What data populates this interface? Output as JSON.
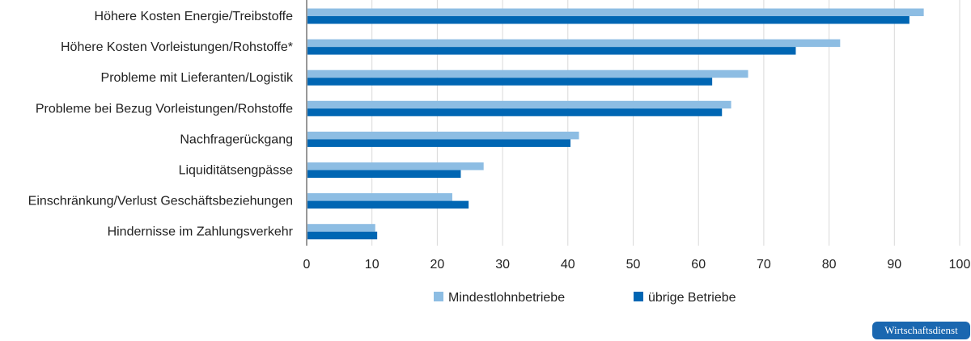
{
  "chart_data": {
    "type": "bar",
    "orientation": "horizontal",
    "categories": [
      "Höhere Kosten Energie/Treibstoffe",
      "Höhere Kosten Vorleistungen/Rohstoffe*",
      "Probleme mit Lieferanten/Logistik",
      "Probleme bei Bezug Vorleistungen/Rohstoffe",
      "Nachfragerückgang",
      "Liquiditätsengpässe",
      "Einschränkung/Verlust Geschäftsbeziehungen",
      "Hindernisse im Zahlungsverkehr"
    ],
    "series": [
      {
        "name": "Mindestlohnbetriebe",
        "color": "#8dbde3",
        "values": [
          94.5,
          81.7,
          67.6,
          65.0,
          41.7,
          27.1,
          22.3,
          10.5
        ]
      },
      {
        "name": "übrige Betriebe",
        "color": "#0066b3",
        "values": [
          92.3,
          74.9,
          62.1,
          63.6,
          40.4,
          23.6,
          24.8,
          10.8
        ]
      }
    ],
    "xlim": [
      0,
      100
    ],
    "ticks": [
      "0",
      "10",
      "20",
      "30",
      "40",
      "50",
      "60",
      "70",
      "80",
      "90",
      "100"
    ],
    "grid": "vertical",
    "legend_position": "bottom-center"
  },
  "brand": {
    "label": "Wirtschaftsdienst"
  }
}
